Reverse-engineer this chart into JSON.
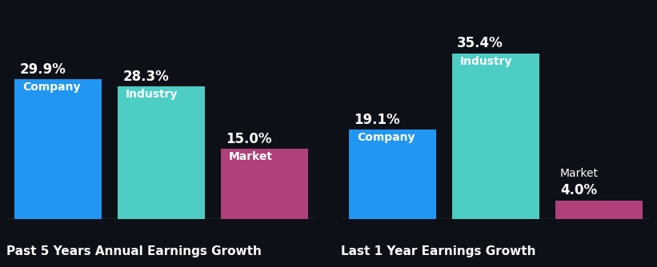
{
  "background_color": "#0d1117",
  "groups": [
    {
      "title": "Past 5 Years Annual Earnings Growth",
      "bars": [
        {
          "label": "Company",
          "value": 29.9,
          "color": "#2196f3",
          "label_inside": true
        },
        {
          "label": "Industry",
          "value": 28.3,
          "color": "#4ecdc4",
          "label_inside": true
        },
        {
          "label": "Market",
          "value": 15.0,
          "color": "#b0407a",
          "label_inside": true
        }
      ]
    },
    {
      "title": "Last 1 Year Earnings Growth",
      "bars": [
        {
          "label": "Company",
          "value": 19.1,
          "color": "#2196f3",
          "label_inside": true
        },
        {
          "label": "Industry",
          "value": 35.4,
          "color": "#4ecdc4",
          "label_inside": true
        },
        {
          "label": "Market",
          "value": 4.0,
          "color": "#b0407a",
          "label_inside": false
        }
      ]
    }
  ],
  "value_fontsize": 12,
  "label_fontsize": 10,
  "title_fontsize": 11,
  "text_color": "#ffffff",
  "dark_label_color": "#0d2020",
  "axis_line_color": "#555577",
  "ylim": [
    0,
    40
  ]
}
